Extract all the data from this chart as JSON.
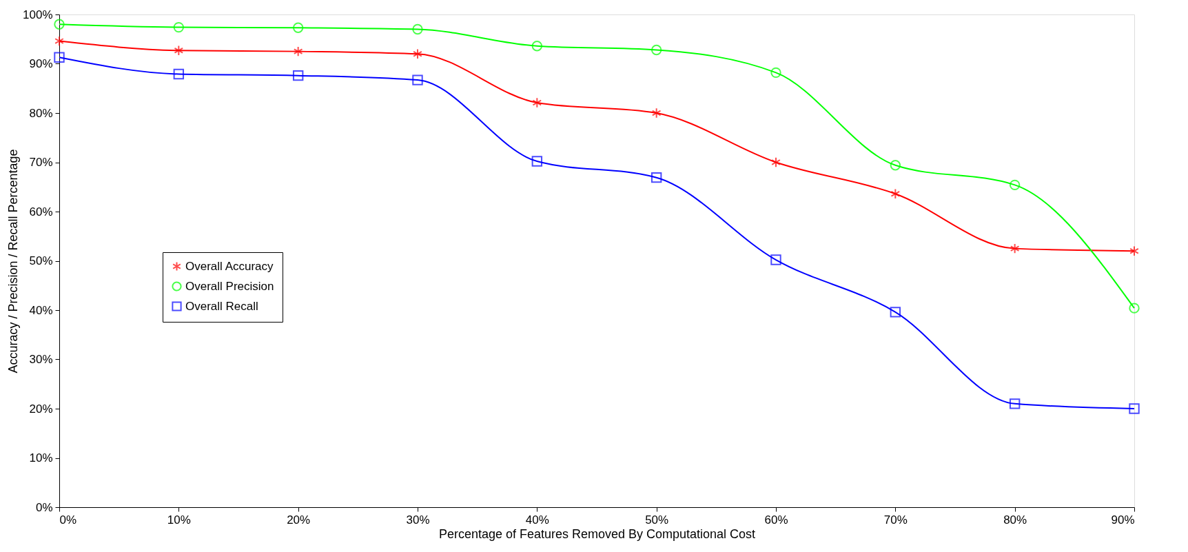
{
  "chart_data": {
    "type": "line",
    "xlabel": "Percentage of Features Removed By Computational Cost",
    "ylabel": "Accuracy / Precision / Recall Percentage",
    "x": [
      0,
      10,
      20,
      30,
      40,
      50,
      60,
      70,
      80,
      90
    ],
    "series": [
      {
        "name": "Overall Accuracy",
        "color": "#ff0000",
        "marker": "cross",
        "values": [
          94.6,
          92.7,
          92.5,
          92.0,
          82.1,
          80.0,
          70.0,
          63.6,
          52.5,
          52.0
        ]
      },
      {
        "name": "Overall Precision",
        "color": "#00ff00",
        "marker": "circle",
        "values": [
          98.0,
          97.4,
          97.3,
          97.0,
          93.6,
          92.8,
          88.2,
          69.4,
          65.4,
          40.4
        ]
      },
      {
        "name": "Overall Recall",
        "color": "#0000ff",
        "marker": "square",
        "values": [
          91.3,
          87.9,
          87.6,
          86.7,
          70.2,
          66.9,
          50.2,
          39.6,
          21.0,
          20.0
        ]
      }
    ],
    "xlim": [
      0,
      90
    ],
    "ylim": [
      0,
      100
    ],
    "xticks": [
      {
        "value": 0,
        "label": "0%"
      },
      {
        "value": 10,
        "label": "10%"
      },
      {
        "value": 20,
        "label": "20%"
      },
      {
        "value": 30,
        "label": "30%"
      },
      {
        "value": 40,
        "label": "40%"
      },
      {
        "value": 50,
        "label": "50%"
      },
      {
        "value": 60,
        "label": "60%"
      },
      {
        "value": 70,
        "label": "70%"
      },
      {
        "value": 80,
        "label": "80%"
      },
      {
        "value": 90,
        "label": "90%"
      }
    ],
    "yticks": [
      {
        "value": 0,
        "label": "0%"
      },
      {
        "value": 10,
        "label": "10%"
      },
      {
        "value": 20,
        "label": "20%"
      },
      {
        "value": 30,
        "label": "30%"
      },
      {
        "value": 40,
        "label": "40%"
      },
      {
        "value": 50,
        "label": "50%"
      },
      {
        "value": 60,
        "label": "60%"
      },
      {
        "value": 70,
        "label": "70%"
      },
      {
        "value": 80,
        "label": "80%"
      },
      {
        "value": 90,
        "label": "90%"
      },
      {
        "value": 100,
        "label": "100%"
      }
    ],
    "grid": false,
    "legend": "left",
    "line_style": "solid"
  }
}
